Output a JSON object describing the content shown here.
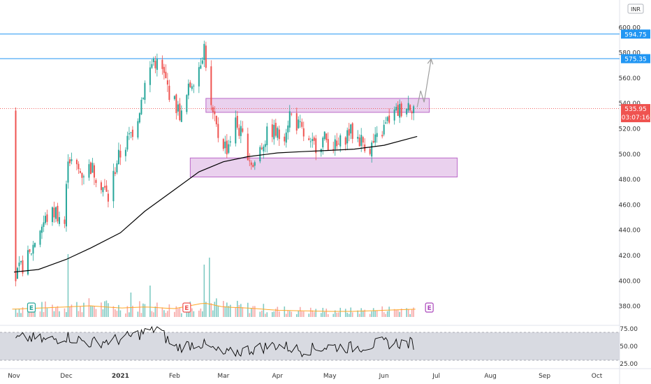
{
  "chart_data": {
    "type": "candlestick",
    "currency": "INR",
    "x_ticks": [
      {
        "label": "Nov",
        "date": "2020-11-01",
        "bold": false
      },
      {
        "label": "Dec",
        "date": "2020-12-01",
        "bold": false
      },
      {
        "label": "2021",
        "date": "2021-01-01",
        "bold": true
      },
      {
        "label": "Feb",
        "date": "2021-02-01",
        "bold": false
      },
      {
        "label": "Mar",
        "date": "2021-03-01",
        "bold": false
      },
      {
        "label": "Apr",
        "date": "2021-04-01",
        "bold": false
      },
      {
        "label": "May",
        "date": "2021-05-01",
        "bold": false
      },
      {
        "label": "Jun",
        "date": "2021-06-01",
        "bold": false
      },
      {
        "label": "Jul",
        "date": "2021-07-01",
        "bold": false
      },
      {
        "label": "Aug",
        "date": "2021-08-01",
        "bold": false
      },
      {
        "label": "Sep",
        "date": "2021-09-01",
        "bold": false
      },
      {
        "label": "Oct",
        "date": "2021-10-01",
        "bold": false
      }
    ],
    "y_ticks": [
      "600.00",
      "580.00",
      "560.00",
      "540.00",
      "520.00",
      "500.00",
      "480.00",
      "460.00",
      "440.00",
      "420.00",
      "400.00",
      "380.00"
    ],
    "ylim": [
      372,
      604
    ],
    "rsi_ticks": [
      "75.00",
      "50.00",
      "25.00"
    ],
    "rsi_range": [
      25,
      75
    ],
    "rsi_band": [
      30,
      70
    ],
    "price_labels": {
      "upper_line": "594.75",
      "lower_line": "575.35",
      "last_price": "535.95",
      "countdown": "03:07:16"
    },
    "horizontal_lines": [
      594.75,
      575.35
    ],
    "current_price": 535.95,
    "zones": [
      {
        "name": "resistance-zone",
        "start": "2021-02-19",
        "end": "2021-06-27",
        "low": 533,
        "high": 544
      },
      {
        "name": "support-zone",
        "start": "2021-02-10",
        "end": "2021-07-13",
        "low": 482,
        "high": 497
      }
    ],
    "projection": [
      {
        "date": "2021-06-20",
        "value": 537
      },
      {
        "date": "2021-06-22",
        "value": 550
      },
      {
        "date": "2021-06-24",
        "value": 541
      },
      {
        "date": "2021-06-28",
        "value": 575
      }
    ],
    "earnings_markers": [
      {
        "label": "E",
        "date": "2020-11-11",
        "color": "#26a69a"
      },
      {
        "label": "E",
        "date": "2021-02-08",
        "color": "#ef5350"
      },
      {
        "label": "E",
        "date": "2021-06-27",
        "color": "#ab47bc"
      }
    ],
    "moving_average": [
      {
        "date": "2020-11-01",
        "value": 407
      },
      {
        "date": "2020-11-15",
        "value": 409
      },
      {
        "date": "2020-12-01",
        "value": 417
      },
      {
        "date": "2020-12-15",
        "value": 426
      },
      {
        "date": "2021-01-01",
        "value": 438
      },
      {
        "date": "2021-01-15",
        "value": 455
      },
      {
        "date": "2021-02-01",
        "value": 472
      },
      {
        "date": "2021-02-15",
        "value": 486
      },
      {
        "date": "2021-03-01",
        "value": 494
      },
      {
        "date": "2021-03-15",
        "value": 498
      },
      {
        "date": "2021-04-01",
        "value": 501
      },
      {
        "date": "2021-04-15",
        "value": 502
      },
      {
        "date": "2021-05-01",
        "value": 503
      },
      {
        "date": "2021-05-15",
        "value": 504
      },
      {
        "date": "2021-06-01",
        "value": 507
      },
      {
        "date": "2021-06-20",
        "value": 514
      }
    ],
    "price_path": [
      {
        "date": "2020-11-01",
        "value": 400
      },
      {
        "date": "2020-11-05",
        "value": 410
      },
      {
        "date": "2020-11-10",
        "value": 420
      },
      {
        "date": "2020-11-15",
        "value": 440
      },
      {
        "date": "2020-11-20",
        "value": 450
      },
      {
        "date": "2020-11-25",
        "value": 455
      },
      {
        "date": "2020-11-30",
        "value": 445
      },
      {
        "date": "2020-12-02",
        "value": 500
      },
      {
        "date": "2020-12-05",
        "value": 490
      },
      {
        "date": "2020-12-10",
        "value": 485
      },
      {
        "date": "2020-12-15",
        "value": 490
      },
      {
        "date": "2020-12-20",
        "value": 480
      },
      {
        "date": "2020-12-25",
        "value": 465
      },
      {
        "date": "2020-12-30",
        "value": 495
      },
      {
        "date": "2021-01-05",
        "value": 510
      },
      {
        "date": "2021-01-10",
        "value": 525
      },
      {
        "date": "2021-01-15",
        "value": 555
      },
      {
        "date": "2021-01-20",
        "value": 575
      },
      {
        "date": "2021-01-25",
        "value": 565
      },
      {
        "date": "2021-01-30",
        "value": 545
      },
      {
        "date": "2021-02-05",
        "value": 530
      },
      {
        "date": "2021-02-10",
        "value": 555
      },
      {
        "date": "2021-02-15",
        "value": 570
      },
      {
        "date": "2021-02-18",
        "value": 585
      },
      {
        "date": "2021-02-22",
        "value": 535
      },
      {
        "date": "2021-02-26",
        "value": 515
      },
      {
        "date": "2021-03-03",
        "value": 505
      },
      {
        "date": "2021-03-08",
        "value": 525
      },
      {
        "date": "2021-03-13",
        "value": 510
      },
      {
        "date": "2021-03-18",
        "value": 490
      },
      {
        "date": "2021-03-22",
        "value": 505
      },
      {
        "date": "2021-03-28",
        "value": 520
      },
      {
        "date": "2021-04-04",
        "value": 512
      },
      {
        "date": "2021-04-08",
        "value": 532
      },
      {
        "date": "2021-04-14",
        "value": 520
      },
      {
        "date": "2021-04-20",
        "value": 505
      },
      {
        "date": "2021-04-28",
        "value": 512
      },
      {
        "date": "2021-05-05",
        "value": 505
      },
      {
        "date": "2021-05-12",
        "value": 518
      },
      {
        "date": "2021-05-18",
        "value": 512
      },
      {
        "date": "2021-05-24",
        "value": 505
      },
      {
        "date": "2021-05-30",
        "value": 515
      },
      {
        "date": "2021-06-04",
        "value": 528
      },
      {
        "date": "2021-06-10",
        "value": 535
      },
      {
        "date": "2021-06-15",
        "value": 540
      },
      {
        "date": "2021-06-20",
        "value": 536
      }
    ],
    "volume_range": [
      0,
      100
    ],
    "volume_path": [
      {
        "date": "2020-11-01",
        "value": 14
      },
      {
        "date": "2020-12-01",
        "value": 18
      },
      {
        "date": "2020-12-15",
        "value": 20
      },
      {
        "date": "2021-01-01",
        "value": 16
      },
      {
        "date": "2021-01-15",
        "value": 18
      },
      {
        "date": "2021-02-01",
        "value": 15
      },
      {
        "date": "2021-02-18",
        "value": 25
      },
      {
        "date": "2021-03-01",
        "value": 18
      },
      {
        "date": "2021-03-15",
        "value": 16
      },
      {
        "date": "2021-04-01",
        "value": 12
      },
      {
        "date": "2021-04-15",
        "value": 11
      },
      {
        "date": "2021-05-01",
        "value": 10
      },
      {
        "date": "2021-05-15",
        "value": 10
      },
      {
        "date": "2021-06-01",
        "value": 12
      },
      {
        "date": "2021-06-20",
        "value": 14
      }
    ],
    "volume_spikes": [
      {
        "date": "2020-12-02",
        "value": 90
      },
      {
        "date": "2021-02-18",
        "value": 75
      },
      {
        "date": "2021-02-21",
        "value": 85
      },
      {
        "date": "2021-01-18",
        "value": 45
      },
      {
        "date": "2021-01-07",
        "value": 35
      }
    ],
    "rsi_path": [
      {
        "date": "2020-11-01",
        "value": 60
      },
      {
        "date": "2020-11-10",
        "value": 62
      },
      {
        "date": "2020-11-20",
        "value": 58
      },
      {
        "date": "2020-12-01",
        "value": 64
      },
      {
        "date": "2020-12-15",
        "value": 55
      },
      {
        "date": "2021-01-01",
        "value": 60
      },
      {
        "date": "2021-01-15",
        "value": 70
      },
      {
        "date": "2021-01-22",
        "value": 76
      },
      {
        "date": "2021-02-01",
        "value": 48
      },
      {
        "date": "2021-02-15",
        "value": 55
      },
      {
        "date": "2021-03-01",
        "value": 38
      },
      {
        "date": "2021-03-15",
        "value": 45
      },
      {
        "date": "2021-04-01",
        "value": 52
      },
      {
        "date": "2021-04-15",
        "value": 44
      },
      {
        "date": "2021-05-01",
        "value": 50
      },
      {
        "date": "2021-05-15",
        "value": 48
      },
      {
        "date": "2021-06-01",
        "value": 55
      },
      {
        "date": "2021-06-20",
        "value": 54
      }
    ]
  }
}
